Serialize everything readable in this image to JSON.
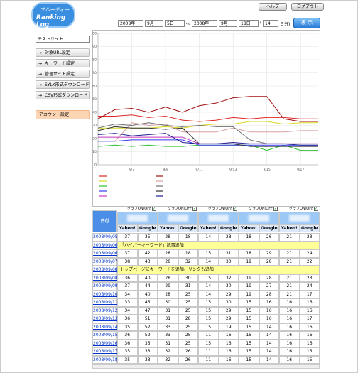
{
  "header": {
    "logo_small": "ブルーディー",
    "logo": "Ranking Log",
    "help": "ヘルプ",
    "logout": "ログアウト"
  },
  "date_form": {
    "from_year": "2008年",
    "from_month": "9月",
    "from_day": "5日",
    "sep": "～",
    "to_year": "2008年",
    "to_month": "9月",
    "to_day": "18日",
    "days_open": "(",
    "days": "14",
    "days_unit": "日分)",
    "submit": "表 示"
  },
  "sidebar": {
    "site": "テストサイト",
    "menu": [
      "対象URL設定",
      "キーワード設定",
      "管理サイト設定",
      "SYLK形式ダウンロード",
      "CSV形式ダウンロード"
    ],
    "account": "アカウント設定"
  },
  "chart": {
    "ylim": [
      0,
      100
    ],
    "yticks": [
      0,
      10,
      20,
      30,
      40,
      50,
      60,
      70,
      80,
      90,
      100
    ],
    "xticks": [
      "9/7",
      "9/9",
      "9/11",
      "9/13",
      "9/15",
      "9/17"
    ],
    "colors": [
      "#e02828",
      "#a01010",
      "#d8d820",
      "#d8a0a0",
      "#30c030",
      "#707070",
      "#3838f0",
      "#303030",
      "#c038c0",
      "#202090"
    ]
  },
  "table": {
    "date_header": "日付",
    "toggle": "グラフON/OFF",
    "engines": [
      "Yahoo!",
      "Google"
    ],
    "rows": [
      {
        "date": "2008/09/05",
        "values": [
          37,
          35,
          28,
          18,
          14,
          28,
          18,
          26,
          21,
          23
        ]
      },
      {
        "date": "2008/09/06",
        "note": "「ハイパーキーワード」記事追加"
      },
      {
        "date": "2008/09/06",
        "values": [
          37,
          42,
          28,
          18,
          15,
          31,
          18,
          29,
          21,
          24
        ]
      },
      {
        "date": "2008/09/07",
        "values": [
          38,
          43,
          28,
          32,
          14,
          30,
          19,
          28,
          21,
          22
        ]
      },
      {
        "date": "2008/09/08",
        "note": "トップページにキーワードを追加、リンクも追加"
      },
      {
        "date": "2008/09/08",
        "values": [
          36,
          40,
          28,
          30,
          15,
          32,
          19,
          28,
          21,
          23
        ]
      },
      {
        "date": "2008/09/09",
        "values": [
          37,
          44,
          29,
          31,
          14,
          30,
          19,
          27,
          21,
          24
        ]
      },
      {
        "date": "2008/09/10",
        "values": [
          34,
          40,
          28,
          25,
          14,
          29,
          19,
          28,
          21,
          17
        ]
      },
      {
        "date": "2008/09/11",
        "values": [
          33,
          45,
          30,
          25,
          15,
          30,
          15,
          16,
          16,
          16
        ]
      },
      {
        "date": "2008/09/12",
        "values": [
          34,
          47,
          31,
          25,
          15,
          29,
          15,
          16,
          16,
          16
        ]
      },
      {
        "date": "2008/09/13",
        "values": [
          36,
          51,
          31,
          28,
          15,
          29,
          15,
          16,
          16,
          17
        ]
      },
      {
        "date": "2008/09/14",
        "values": [
          35,
          52,
          33,
          25,
          15,
          19,
          15,
          14,
          16,
          16
        ]
      },
      {
        "date": "2008/09/15",
        "values": [
          36,
          52,
          33,
          25,
          11,
          16,
          15,
          14,
          16,
          16
        ]
      },
      {
        "date": "2008/09/16",
        "values": [
          36,
          35,
          31,
          25,
          15,
          16,
          15,
          14,
          16,
          16
        ]
      },
      {
        "date": "2008/09/17",
        "values": [
          35,
          33,
          32,
          26,
          11,
          16,
          15,
          14,
          16,
          15
        ]
      },
      {
        "date": "2008/09/18",
        "values": [
          35,
          33,
          32,
          26,
          11,
          16,
          15,
          14,
          16,
          15
        ]
      }
    ]
  }
}
